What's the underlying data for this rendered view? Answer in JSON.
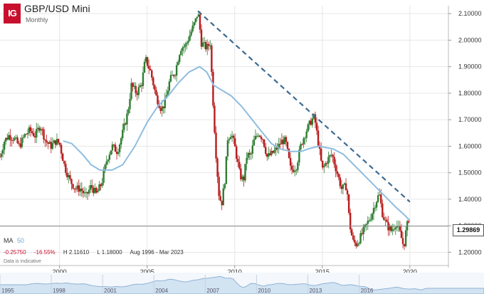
{
  "header": {
    "logo_text": "IG",
    "title": "GBP/USD Mini",
    "interval": "Monthly"
  },
  "indicator": {
    "ma_label": "MA",
    "ma_period": "50"
  },
  "stats": {
    "change": "-0.25750",
    "change_pct": "-16.55%",
    "high": "H 2.11610",
    "low": "L 1.18000",
    "range": "Aug 1996 - Mar 2023"
  },
  "disclaimer": "Data is indicative",
  "last_price_label": "1.29869",
  "colors": {
    "up": "#2e7d32",
    "down": "#b71c1c",
    "ma": "#8fbde0",
    "trendline": "#3c6a92",
    "nav_fill": "#d2e3f2",
    "nav_line": "#8fb3d6",
    "logo": "#c8102e"
  },
  "chart_data": {
    "type": "candlestick",
    "instrument": "GBP/USD Mini",
    "interval": "Monthly",
    "y_axis": {
      "side": "right",
      "ylim": [
        1.15,
        2.13
      ],
      "ticks": [
        1.2,
        1.3,
        1.4,
        1.5,
        1.6,
        1.7,
        1.8,
        1.9,
        2.0,
        2.1
      ],
      "tick_labels": [
        "1.20000",
        "1.30000",
        "1.40000",
        "1.50000",
        "1.60000",
        "1.70000",
        "1.80000",
        "1.90000",
        "2.00000",
        "2.10000"
      ]
    },
    "x_axis": {
      "xlim": [
        1996.6,
        2022.2
      ],
      "ticks": [
        2000,
        2005,
        2010,
        2015,
        2020
      ],
      "tick_labels": [
        "2000",
        "2005",
        "2010",
        "2015",
        "2020"
      ]
    },
    "grid": true,
    "price_path": [
      [
        1996.6,
        1.56
      ],
      [
        1996.85,
        1.62
      ],
      [
        1997.1,
        1.64
      ],
      [
        1997.4,
        1.63
      ],
      [
        1997.7,
        1.6
      ],
      [
        1998.0,
        1.64
      ],
      [
        1998.3,
        1.66
      ],
      [
        1998.6,
        1.64
      ],
      [
        1998.9,
        1.68
      ],
      [
        1999.2,
        1.62
      ],
      [
        1999.5,
        1.6
      ],
      [
        1999.8,
        1.62
      ],
      [
        2000.0,
        1.61
      ],
      [
        2000.3,
        1.52
      ],
      [
        2000.6,
        1.47
      ],
      [
        2000.9,
        1.44
      ],
      [
        2001.2,
        1.44
      ],
      [
        2001.5,
        1.41
      ],
      [
        2001.8,
        1.45
      ],
      [
        2002.1,
        1.42
      ],
      [
        2002.4,
        1.46
      ],
      [
        2002.7,
        1.55
      ],
      [
        2003.0,
        1.6
      ],
      [
        2003.3,
        1.58
      ],
      [
        2003.6,
        1.65
      ],
      [
        2003.9,
        1.73
      ],
      [
        2004.1,
        1.83
      ],
      [
        2004.4,
        1.8
      ],
      [
        2004.7,
        1.84
      ],
      [
        2004.9,
        1.93
      ],
      [
        2005.2,
        1.88
      ],
      [
        2005.5,
        1.79
      ],
      [
        2005.8,
        1.74
      ],
      [
        2006.0,
        1.76
      ],
      [
        2006.3,
        1.85
      ],
      [
        2006.6,
        1.88
      ],
      [
        2006.9,
        1.97
      ],
      [
        2007.2,
        1.98
      ],
      [
        2007.5,
        2.03
      ],
      [
        2007.8,
        2.08
      ],
      [
        2007.9,
        2.11
      ],
      [
        2008.1,
        1.99
      ],
      [
        2008.4,
        1.97
      ],
      [
        2008.6,
        1.99
      ],
      [
        2008.8,
        1.72
      ],
      [
        2008.95,
        1.55
      ],
      [
        2009.1,
        1.42
      ],
      [
        2009.25,
        1.38
      ],
      [
        2009.45,
        1.48
      ],
      [
        2009.6,
        1.63
      ],
      [
        2009.8,
        1.65
      ],
      [
        2010.0,
        1.6
      ],
      [
        2010.3,
        1.49
      ],
      [
        2010.5,
        1.47
      ],
      [
        2010.7,
        1.57
      ],
      [
        2010.9,
        1.56
      ],
      [
        2011.1,
        1.62
      ],
      [
        2011.35,
        1.65
      ],
      [
        2011.6,
        1.63
      ],
      [
        2011.85,
        1.56
      ],
      [
        2012.1,
        1.57
      ],
      [
        2012.4,
        1.59
      ],
      [
        2012.7,
        1.62
      ],
      [
        2012.9,
        1.62
      ],
      [
        2013.2,
        1.51
      ],
      [
        2013.5,
        1.52
      ],
      [
        2013.8,
        1.61
      ],
      [
        2014.1,
        1.66
      ],
      [
        2014.4,
        1.7
      ],
      [
        2014.55,
        1.71
      ],
      [
        2014.8,
        1.6
      ],
      [
        2015.0,
        1.51
      ],
      [
        2015.3,
        1.55
      ],
      [
        2015.55,
        1.57
      ],
      [
        2015.8,
        1.51
      ],
      [
        2016.1,
        1.44
      ],
      [
        2016.4,
        1.45
      ],
      [
        2016.55,
        1.31
      ],
      [
        2016.75,
        1.24
      ],
      [
        2016.95,
        1.23
      ],
      [
        2017.2,
        1.26
      ],
      [
        2017.5,
        1.3
      ],
      [
        2017.8,
        1.34
      ],
      [
        2018.05,
        1.39
      ],
      [
        2018.25,
        1.42
      ],
      [
        2018.45,
        1.34
      ],
      [
        2018.7,
        1.3
      ],
      [
        2018.95,
        1.28
      ],
      [
        2019.2,
        1.31
      ],
      [
        2019.45,
        1.27
      ],
      [
        2019.65,
        1.22
      ],
      [
        2019.8,
        1.29
      ],
      [
        2019.95,
        1.33
      ]
    ],
    "moving_average_50": {
      "name": "MA 50",
      "points": [
        [
          2000.2,
          1.62
        ],
        [
          2000.7,
          1.61
        ],
        [
          2001.3,
          1.57
        ],
        [
          2001.8,
          1.53
        ],
        [
          2002.3,
          1.51
        ],
        [
          2003.0,
          1.51
        ],
        [
          2003.6,
          1.53
        ],
        [
          2004.3,
          1.6
        ],
        [
          2005.0,
          1.69
        ],
        [
          2005.6,
          1.75
        ],
        [
          2006.2,
          1.79
        ],
        [
          2006.8,
          1.84
        ],
        [
          2007.4,
          1.88
        ],
        [
          2008.0,
          1.9
        ],
        [
          2008.4,
          1.88
        ],
        [
          2008.8,
          1.83
        ],
        [
          2009.3,
          1.81
        ],
        [
          2009.8,
          1.79
        ],
        [
          2010.4,
          1.75
        ],
        [
          2011.0,
          1.7
        ],
        [
          2011.6,
          1.65
        ],
        [
          2012.1,
          1.61
        ],
        [
          2012.6,
          1.59
        ],
        [
          2013.2,
          1.58
        ],
        [
          2013.8,
          1.58
        ],
        [
          2014.2,
          1.59
        ],
        [
          2014.8,
          1.6
        ],
        [
          2015.6,
          1.59
        ],
        [
          2016.2,
          1.57
        ],
        [
          2016.8,
          1.53
        ],
        [
          2017.4,
          1.49
        ],
        [
          2018.0,
          1.45
        ],
        [
          2018.6,
          1.41
        ],
        [
          2019.2,
          1.37
        ],
        [
          2019.7,
          1.34
        ],
        [
          2020.0,
          1.32
        ]
      ]
    },
    "trendline": {
      "style": "dashed",
      "from": [
        2007.9,
        2.11
      ],
      "to": [
        2020.0,
        1.39
      ]
    },
    "last_price": 1.29869
  },
  "navigator": {
    "labels": [
      "1995",
      "1998",
      "2001",
      "2004",
      "2007",
      "2010",
      "2013",
      "2016"
    ]
  }
}
